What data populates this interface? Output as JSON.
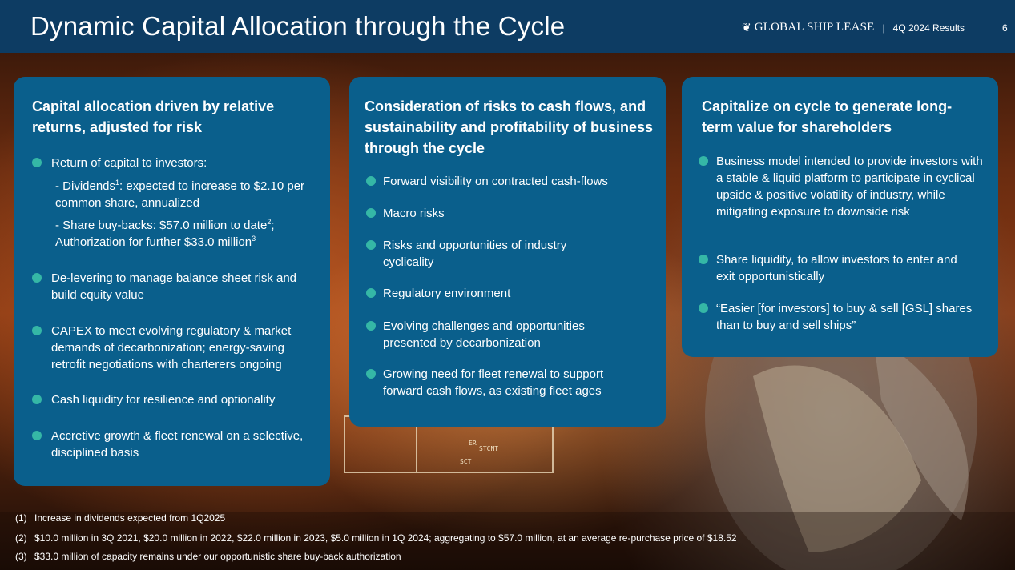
{
  "header": {
    "title": "Dynamic Capital Allocation through the Cycle",
    "logo_text": "GLOBAL SHIP LEASE",
    "separator": "|",
    "results_label": "4Q 2024 Results",
    "page_number": "6"
  },
  "cards": [
    {
      "heading": "Capital allocation driven by relative returns, adjusted for risk",
      "items": [
        {
          "text": "Return of capital to investors:",
          "subitems": [
            {
              "text_a": "- Dividends",
              "sup": "1",
              "text_b": ": expected to increase to $2.10 per common share, annualized"
            },
            {
              "text_a": "- Share buy-backs: $57.0 million to date",
              "sup": "2",
              "text_b": "; Authorization for further $33.0 million",
              "sup2": "3"
            }
          ]
        },
        {
          "text": "De-levering to manage balance sheet risk and build equity value"
        },
        {
          "text": "CAPEX to meet evolving regulatory & market demands of decarbonization; energy-saving retrofit negotiations with charterers ongoing"
        },
        {
          "text": "Cash liquidity for resilience and optionality"
        },
        {
          "text": "Accretive growth & fleet renewal on a selective, disciplined basis"
        }
      ]
    },
    {
      "heading": "Consideration of risks to cash flows, and sustainability and profitability of business through the cycle",
      "items": [
        {
          "text": "Forward visibility on contracted cash-flows"
        },
        {
          "text": "Macro risks"
        },
        {
          "text": "Risks and opportunities of industry cyclicality"
        },
        {
          "text": "Regulatory environment"
        },
        {
          "text": "Evolving challenges and opportunities presented by decarbonization"
        },
        {
          "text": "Growing need for fleet renewal to support forward cash flows, as existing fleet ages"
        }
      ]
    },
    {
      "heading": "Capitalize on cycle to generate long-term value for shareholders",
      "items": [
        {
          "text": "Business model intended to provide investors with a stable & liquid platform to participate in cyclical upside & positive volatility of industry, while mitigating exposure to downside risk"
        },
        {
          "text": "Share liquidity, to allow investors to enter and exit opportunistically"
        },
        {
          "text": "“Easier [for investors] to buy & sell [GSL] shares than to buy and sell ships”"
        }
      ]
    }
  ],
  "hull_marks": [
    "ER",
    "STCNT",
    "SCT"
  ],
  "footnotes": [
    {
      "num": "(1)",
      "text": "Increase in dividends expected from 1Q2025"
    },
    {
      "num": "(2)",
      "text": "$10.0 million in 3Q 2021, $20.0 million in 2022, $22.0 million in 2023, $5.0 million in 1Q 2024; aggregating to $57.0 million, at an average re-purchase price of $18.52"
    },
    {
      "num": "(3)",
      "text": "$33.0 million of capacity remains under our opportunistic share buy-back authorization"
    }
  ],
  "colors": {
    "header": "#0d3c63",
    "card": "#0a5f8c",
    "bullet": "#35b7a6"
  },
  "icons": {
    "logo": "ship-lease-logo-icon",
    "bullet": "bullet-dot-icon",
    "background": "ship-propeller-photo"
  }
}
